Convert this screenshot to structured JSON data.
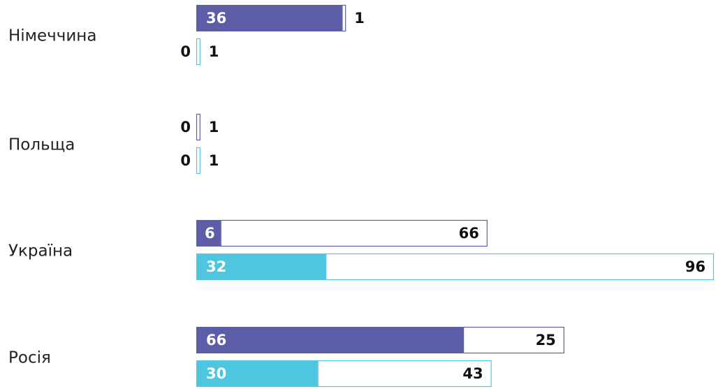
{
  "chart_data": {
    "type": "bar",
    "categories": [
      "Німеччина",
      "Польща",
      "Україна",
      "Росія"
    ],
    "xlim": [
      0,
      128
    ],
    "series": [
      {
        "color": "#5b5ea6",
        "values": [
          36,
          0,
          6,
          66
        ],
        "rest": [
          1,
          1,
          66,
          25
        ]
      },
      {
        "color": "#4fc6e0",
        "values": [
          0,
          0,
          32,
          30
        ],
        "rest": [
          1,
          1,
          96,
          43
        ]
      }
    ]
  }
}
